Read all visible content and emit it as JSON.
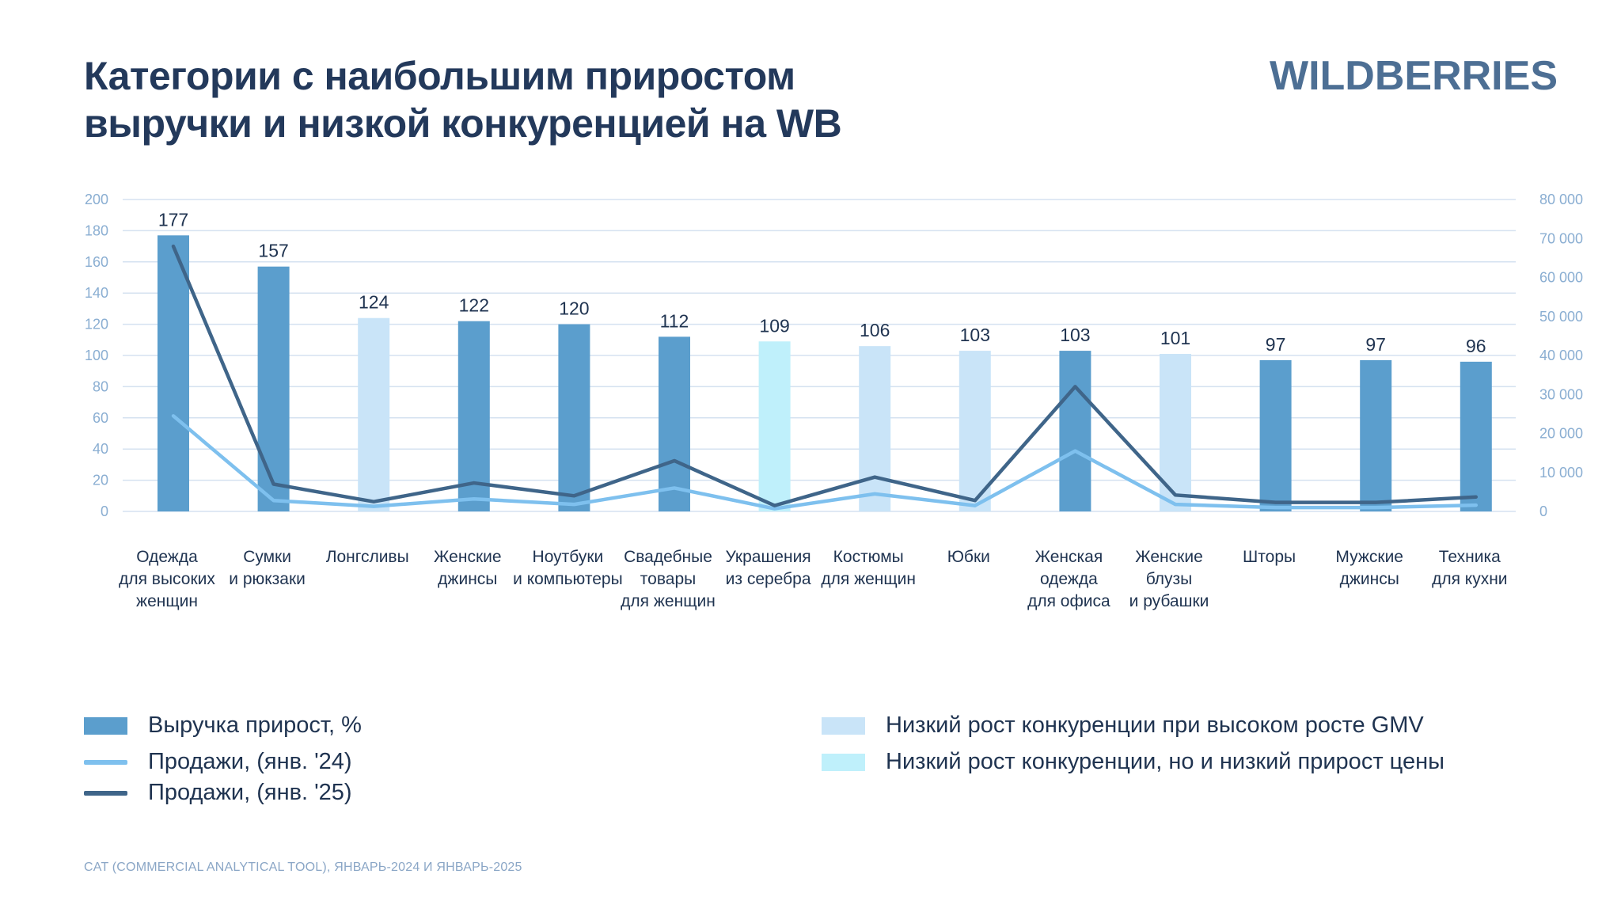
{
  "header": {
    "title_line1": "Категории с наибольшим приростом",
    "title_line2": "выручки и низкой конкуренцией на WB",
    "logo": "WILDBERRIES"
  },
  "colors": {
    "bar_default": "#5b9ecd",
    "bar_low_competition_high_gmv": "#c9e4f8",
    "bar_low_competition_low_price": "#bff0fb",
    "line_2024": "#7ec0ee",
    "line_2025": "#3f6589",
    "grid": "#d5e2f0",
    "axis_text": "#8aaed2"
  },
  "chart_data": {
    "type": "bar",
    "categories": [
      [
        "Одежда",
        "для высоких",
        "женщин"
      ],
      [
        "Сумки",
        "и рюкзаки"
      ],
      [
        "Лонгсливы"
      ],
      [
        "Женские",
        "джинсы"
      ],
      [
        "Ноутбуки",
        "и компьютеры"
      ],
      [
        "Свадебные",
        "товары",
        "для женщин"
      ],
      [
        "Украшения",
        "из серебра"
      ],
      [
        "Костюмы",
        "для женщин"
      ],
      [
        "Юбки"
      ],
      [
        "Женская",
        "одежда",
        "для офиса"
      ],
      [
        "Женские",
        "блузы",
        "и рубашки"
      ],
      [
        "Шторы"
      ],
      [
        "Мужские",
        "джинсы"
      ],
      [
        "Техника",
        "для кухни"
      ]
    ],
    "series": [
      {
        "name": "Выручка прирост, %",
        "type": "bar",
        "axis": "left",
        "values": [
          177,
          157,
          124,
          122,
          120,
          112,
          109,
          106,
          103,
          103,
          101,
          97,
          97,
          96
        ],
        "highlight": [
          "default",
          "default",
          "high_gmv",
          "default",
          "default",
          "default",
          "low_price",
          "high_gmv",
          "high_gmv",
          "default",
          "high_gmv",
          "default",
          "default",
          "default"
        ]
      },
      {
        "name": "Продажи, (янв. '24)",
        "type": "line",
        "axis": "right",
        "values": [
          24500,
          2800,
          1300,
          3200,
          1800,
          6000,
          700,
          4500,
          1500,
          15500,
          1800,
          1000,
          1000,
          1600
        ]
      },
      {
        "name": "Продажи, (янв. '25)",
        "type": "line",
        "axis": "right",
        "values": [
          68000,
          7000,
          2500,
          7300,
          4000,
          13000,
          1500,
          8800,
          2800,
          32000,
          4200,
          2300,
          2300,
          3700
        ]
      }
    ],
    "left_axis": {
      "min": 0,
      "max": 200,
      "ticks": [
        "0",
        "20",
        "40",
        "60",
        "80",
        "100",
        "120",
        "140",
        "160",
        "180",
        "200"
      ]
    },
    "right_axis": {
      "min": 0,
      "max": 80000,
      "ticks": [
        "0",
        "10 000",
        "20 000",
        "30 000",
        "40 000",
        "50 000",
        "60 000",
        "70 000",
        "80 000"
      ]
    },
    "grid": true
  },
  "legend": {
    "bar": "Выручка прирост, %",
    "line_2024": "Продажи, (янв. '24)",
    "line_2025": "Продажи, (янв. '25)",
    "high_gmv": "Низкий рост конкуренции при высоком росте GMV",
    "low_price": "Низкий рост конкуренции, но и низкий прирост цены"
  },
  "source": "CAT (COMMERCIAL ANALYTICAL TOOL), ЯНВАРЬ-2024 И ЯНВАРЬ-2025"
}
